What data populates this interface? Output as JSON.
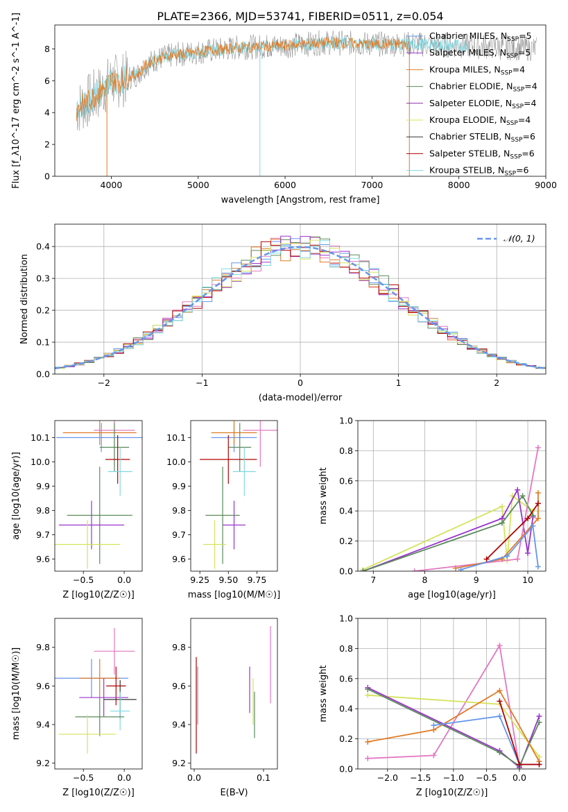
{
  "figure_title": "PLATE=2366, MJD=53741, FIBERID=0511, z=0.054",
  "legend_entries": [
    {
      "text": "Chabrier MILES, N$_{SSP}$=5",
      "color": "#6495ed"
    },
    {
      "text": "Salpeter MILES, N$_{SSP}$=5",
      "color": "#9932cc"
    },
    {
      "text": "Kroupa MILES, N$_{SSP}$=4",
      "color": "#e07b26"
    },
    {
      "text": "Chabrier ELODIE, N$_{SSP}$=4",
      "color": "#5a8a5a"
    },
    {
      "text": "Salpeter ELODIE, N$_{SSP}$=4",
      "color": "#8b2c9e"
    },
    {
      "text": "Kroupa ELODIE, N$_{SSP}$=4",
      "color": "#d4e35a"
    },
    {
      "text": "Chabrier STELIB, N$_{SSP}$=6",
      "color": "#333333"
    },
    {
      "text": "Salpeter STELIB, N$_{SSP}$=6",
      "color": "#b00000"
    },
    {
      "text": "Kroupa STELIB, N$_{SSP}$=6",
      "color": "#7fd8e0"
    }
  ],
  "normal_legend": "N(0,1)",
  "chart_data": [
    {
      "id": "spectrum",
      "type": "line",
      "xlabel": "wavelength [Angstrom, rest frame]",
      "ylabel": "Flux [f_λ10^-17 erg cm^-2 s^-1 A^-1]",
      "xlim": [
        3350,
        9000
      ],
      "ylim": [
        0,
        9.5
      ],
      "xticks": [
        4000,
        5000,
        6000,
        7000,
        8000,
        9000
      ],
      "yticks": [
        0,
        2,
        4,
        6,
        8
      ],
      "data_curve": {
        "x": [
          3600,
          3700,
          3800,
          3900,
          4000,
          4100,
          4200,
          4300,
          4400,
          4500,
          4700,
          5000,
          5500,
          6000,
          6500,
          7000,
          7500,
          8000,
          8500,
          8900
        ],
        "y": [
          4.2,
          4.6,
          5.0,
          5.4,
          6.0,
          6.0,
          6.2,
          6.4,
          7.0,
          7.3,
          7.6,
          7.8,
          8.1,
          8.2,
          8.4,
          8.3,
          8.3,
          8.2,
          8.1,
          8.0
        ]
      },
      "models": [
        {
          "name": "Chabrier STELIB",
          "color": "#808080",
          "x": [
            3600,
            8900
          ]
        },
        {
          "name": "Kroupa STELIB",
          "color": "#7fd8e0",
          "x": [
            3600,
            8100
          ]
        },
        {
          "name": "Kroupa MILES",
          "color": "#e07b26",
          "x": [
            3600,
            7430
          ]
        }
      ]
    },
    {
      "id": "residual-histogram",
      "type": "histogram",
      "xlabel": "(data-model)/error",
      "ylabel": "Normed distribution",
      "xlim": [
        -2.5,
        2.5
      ],
      "ylim": [
        0,
        0.47
      ],
      "xticks": [
        -2,
        -1,
        0,
        1,
        2
      ],
      "yticks": [
        0.0,
        0.1,
        0.2,
        0.3,
        0.4
      ],
      "bin_width": 0.1,
      "reference_curve": {
        "name": "N(0,1)",
        "color": "#6495ed"
      },
      "grid": true
    },
    {
      "id": "age-vs-Z",
      "type": "errorbar",
      "xlabel": "Z [log10(Z/Z☉)]",
      "ylabel": "age [log10(age/yr)]",
      "xlim": [
        -0.85,
        0.22
      ],
      "ylim": [
        9.55,
        10.17
      ],
      "xticks": [
        -0.5,
        0.0
      ],
      "yticks": [
        9.6,
        9.7,
        9.8,
        9.9,
        10.0,
        10.1
      ],
      "points": [
        {
          "x": -0.28,
          "y": 10.1,
          "xerr": 0.55,
          "yerr": 0.06,
          "color": "#6495ed"
        },
        {
          "x": -0.12,
          "y": 10.13,
          "xerr": 0.25,
          "yerr": 0.15,
          "color": "#e377c2"
        },
        {
          "x": -0.3,
          "y": 10.12,
          "xerr": 0.45,
          "yerr": 0.05,
          "color": "#e07b26"
        },
        {
          "x": -0.12,
          "y": 10.06,
          "xerr": 0.18,
          "yerr": 0.1,
          "color": "#5a8a5a"
        },
        {
          "x": -0.08,
          "y": 10.01,
          "xerr": 0.15,
          "yerr": 0.1,
          "color": "#b00000"
        },
        {
          "x": -0.05,
          "y": 9.96,
          "xerr": 0.15,
          "yerr": 0.1,
          "color": "#7fd8e0"
        },
        {
          "x": -0.3,
          "y": 9.78,
          "xerr": 0.4,
          "yerr": 0.2,
          "color": "#5a8a5a"
        },
        {
          "x": -0.4,
          "y": 9.74,
          "xerr": 0.4,
          "yerr": 0.1,
          "color": "#9932cc"
        },
        {
          "x": -0.45,
          "y": 9.66,
          "xerr": 0.4,
          "yerr": 0.1,
          "color": "#d4e35a"
        }
      ]
    },
    {
      "id": "age-vs-mass",
      "type": "errorbar",
      "xlabel": "mass [log10(M/M☉)]",
      "ylabel": "",
      "xlim": [
        9.17,
        9.93
      ],
      "ylim": [
        9.55,
        10.17
      ],
      "xticks": [
        9.25,
        9.5,
        9.75
      ],
      "yticks": [
        9.6,
        9.7,
        9.8,
        9.9,
        10.0,
        10.1
      ],
      "points": [
        {
          "x": 9.55,
          "y": 10.1,
          "xerr": 0.2,
          "yerr": 0.06,
          "color": "#6495ed"
        },
        {
          "x": 9.78,
          "y": 10.13,
          "xerr": 0.15,
          "yerr": 0.15,
          "color": "#e377c2"
        },
        {
          "x": 9.55,
          "y": 10.12,
          "xerr": 0.2,
          "yerr": 0.05,
          "color": "#e07b26"
        },
        {
          "x": 9.6,
          "y": 10.06,
          "xerr": 0.1,
          "yerr": 0.1,
          "color": "#5a8a5a"
        },
        {
          "x": 9.5,
          "y": 10.01,
          "xerr": 0.25,
          "yerr": 0.1,
          "color": "#b00000"
        },
        {
          "x": 9.64,
          "y": 9.96,
          "xerr": 0.1,
          "yerr": 0.1,
          "color": "#7fd8e0"
        },
        {
          "x": 9.45,
          "y": 9.78,
          "xerr": 0.15,
          "yerr": 0.2,
          "color": "#5a8a5a"
        },
        {
          "x": 9.55,
          "y": 9.74,
          "xerr": 0.1,
          "yerr": 0.1,
          "color": "#9932cc"
        },
        {
          "x": 9.38,
          "y": 9.66,
          "xerr": 0.1,
          "yerr": 0.1,
          "color": "#d4e35a"
        }
      ]
    },
    {
      "id": "weight-vs-age",
      "type": "line",
      "xlabel": "age [log10(age/yr)]",
      "ylabel": "mass weight",
      "xlim": [
        6.7,
        10.35
      ],
      "ylim": [
        0,
        1.0
      ],
      "xticks": [
        7,
        8,
        9,
        10
      ],
      "yticks": [
        0.0,
        0.2,
        0.4,
        0.6,
        0.8,
        1.0
      ],
      "grid": true,
      "series": [
        {
          "color": "#d4e35a",
          "x": [
            6.8,
            9.5,
            9.6,
            9.7,
            10.1
          ],
          "y": [
            0.01,
            0.43,
            0.07,
            0.5,
            0.4
          ]
        },
        {
          "color": "#9932cc",
          "x": [
            6.8,
            9.5,
            9.8,
            10.0,
            10.1
          ],
          "y": [
            0.0,
            0.35,
            0.54,
            0.12,
            0.36
          ]
        },
        {
          "color": "#5a8a5a",
          "x": [
            6.8,
            9.5,
            9.9,
            10.1
          ],
          "y": [
            0.0,
            0.32,
            0.5,
            0.37
          ]
        },
        {
          "color": "#e377c2",
          "x": [
            7.8,
            9.8,
            10.2
          ],
          "y": [
            0.0,
            0.08,
            0.82
          ]
        },
        {
          "color": "#e07b26",
          "x": [
            8.6,
            9.5,
            10.2,
            10.2
          ],
          "y": [
            0.02,
            0.08,
            0.35,
            0.52
          ]
        },
        {
          "color": "#6495ed",
          "x": [
            8.7,
            9.6,
            10.1,
            10.2
          ],
          "y": [
            0.01,
            0.1,
            0.3,
            0.03
          ]
        },
        {
          "color": "#b00000",
          "x": [
            9.2,
            10.0,
            10.2
          ],
          "y": [
            0.08,
            0.35,
            0.45
          ]
        }
      ]
    },
    {
      "id": "mass-vs-Z",
      "type": "errorbar",
      "xlabel": "Z [log10(Z/Z☉)]",
      "ylabel": "mass [log10(M/M☉)]",
      "xlim": [
        -0.85,
        0.22
      ],
      "ylim": [
        9.17,
        9.95
      ],
      "xticks": [
        -0.5,
        0.0
      ],
      "yticks": [
        9.2,
        9.4,
        9.6,
        9.8
      ],
      "points": [
        {
          "x": -0.12,
          "y": 9.78,
          "xerr": 0.25,
          "yerr": 0.12,
          "color": "#e377c2"
        },
        {
          "x": -0.4,
          "y": 9.64,
          "xerr": 0.45,
          "yerr": 0.1,
          "color": "#6495ed"
        },
        {
          "x": -0.3,
          "y": 9.64,
          "xerr": 0.25,
          "yerr": 0.1,
          "color": "#e07b26"
        },
        {
          "x": -0.1,
          "y": 9.6,
          "xerr": 0.12,
          "yerr": 0.1,
          "color": "#b00000"
        },
        {
          "x": -0.25,
          "y": 9.54,
          "xerr": 0.3,
          "yerr": 0.1,
          "color": "#9932cc"
        },
        {
          "x": -0.05,
          "y": 9.53,
          "xerr": 0.2,
          "yerr": 0.1,
          "color": "#333333"
        },
        {
          "x": -0.05,
          "y": 9.47,
          "xerr": 0.12,
          "yerr": 0.1,
          "color": "#7fd8e0"
        },
        {
          "x": -0.3,
          "y": 9.44,
          "xerr": 0.3,
          "yerr": 0.1,
          "color": "#5a8a5a"
        },
        {
          "x": -0.45,
          "y": 9.35,
          "xerr": 0.35,
          "yerr": 0.1,
          "color": "#d4e35a"
        }
      ]
    },
    {
      "id": "mass-vs-ebv",
      "type": "errorbar",
      "xlabel": "E(B-V)",
      "ylabel": "",
      "xlim": [
        -0.005,
        0.12
      ],
      "ylim": [
        9.17,
        9.95
      ],
      "xticks": [
        0.0,
        0.1
      ],
      "yticks": [
        9.2,
        9.4,
        9.6,
        9.8
      ],
      "points": [
        {
          "x": 0.003,
          "y": 9.5,
          "yerr": 0.25,
          "color": "#b00000"
        },
        {
          "x": 0.005,
          "y": 9.55,
          "yerr": 0.15,
          "color": "#6495ed"
        },
        {
          "x": 0.08,
          "y": 9.58,
          "yerr": 0.12,
          "color": "#9932cc"
        },
        {
          "x": 0.085,
          "y": 9.52,
          "yerr": 0.12,
          "color": "#d4e35a"
        },
        {
          "x": 0.087,
          "y": 9.45,
          "yerr": 0.12,
          "color": "#5a8a5a"
        },
        {
          "x": 0.11,
          "y": 9.71,
          "yerr": 0.2,
          "color": "#e377c2"
        }
      ]
    },
    {
      "id": "weight-vs-Z",
      "type": "line",
      "xlabel": "Z [log10(Z/Z☉)]",
      "ylabel": "mass weight",
      "xlim": [
        -2.45,
        0.4
      ],
      "ylim": [
        0,
        1.0
      ],
      "xticks": [
        -2.0,
        -1.5,
        -1.0,
        -0.5,
        0.0
      ],
      "yticks": [
        0.0,
        0.2,
        0.4,
        0.6,
        0.8,
        1.0
      ],
      "grid": true,
      "series": [
        {
          "color": "#e377c2",
          "x": [
            -2.3,
            -1.3,
            -0.3,
            0.0
          ],
          "y": [
            0.07,
            0.09,
            0.82,
            0.01
          ]
        },
        {
          "color": "#d4e35a",
          "x": [
            -2.3,
            -0.3,
            0.3
          ],
          "y": [
            0.49,
            0.43,
            0.08
          ]
        },
        {
          "color": "#9932cc",
          "x": [
            -2.3,
            -0.3,
            0.0,
            0.3
          ],
          "y": [
            0.54,
            0.12,
            0.01,
            0.35
          ]
        },
        {
          "color": "#5a8a5a",
          "x": [
            -2.3,
            -0.3,
            0.0,
            0.3
          ],
          "y": [
            0.53,
            0.11,
            0.02,
            0.31
          ]
        },
        {
          "color": "#e07b26",
          "x": [
            -2.3,
            -1.3,
            -0.3,
            0.3
          ],
          "y": [
            0.18,
            0.26,
            0.52,
            0.05
          ]
        },
        {
          "color": "#6495ed",
          "x": [
            -1.3,
            -0.3,
            0.0,
            0.3
          ],
          "y": [
            0.29,
            0.35,
            0.03,
            0.03
          ]
        },
        {
          "color": "#b00000",
          "x": [
            -0.3,
            0.0,
            0.3
          ],
          "y": [
            0.45,
            0.03,
            0.03
          ]
        }
      ]
    }
  ]
}
